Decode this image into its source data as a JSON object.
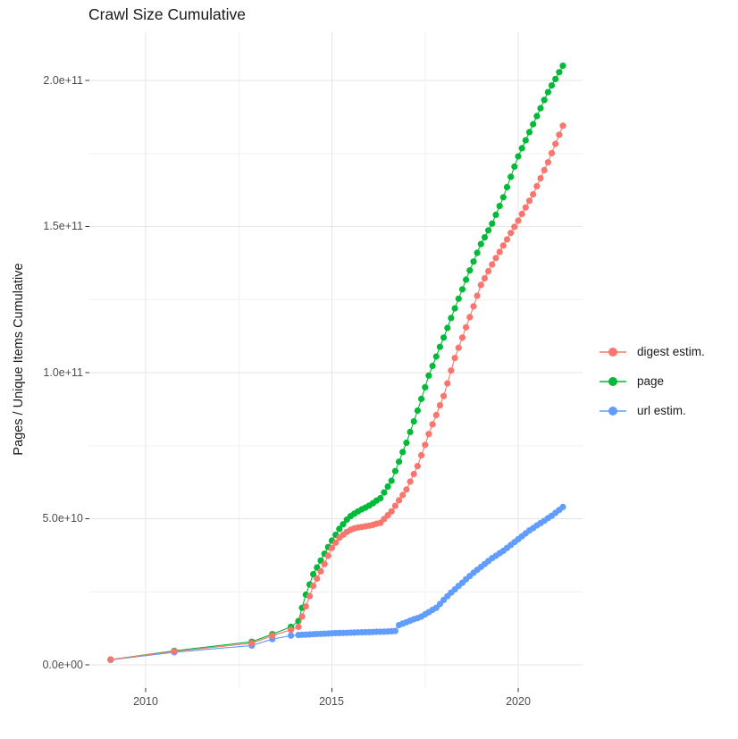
{
  "title": "Crawl Size Cumulative",
  "y_axis": {
    "label": "Pages / Unique Items Cumulative",
    "ticks": [
      "0.0e+00",
      "5.0e+10",
      "1.0e+11",
      "1.5e+11",
      "2.0e+11"
    ]
  },
  "x_axis": {
    "ticks": [
      "2010",
      "2015",
      "2020"
    ]
  },
  "legend": {
    "items": [
      {
        "label": "digest estim.",
        "color": "#F8766D"
      },
      {
        "label": "page",
        "color": "#00BA38"
      },
      {
        "label": "url estim.",
        "color": "#619CFF"
      }
    ]
  },
  "chart_data": {
    "type": "scatter",
    "title": "Crawl Size Cumulative",
    "xlabel": "",
    "ylabel": "Pages / Unique Items Cumulative",
    "values_unit": "billions (value x 1e9 pages/items)",
    "x_unit": "year (crawl date)",
    "xlim": [
      2008.5,
      2021.7
    ],
    "ylim_billions": [
      -8,
      217
    ],
    "x_ticks_years": [
      2010,
      2015,
      2020
    ],
    "x_minor_years": [
      2012.5,
      2017.5
    ],
    "y_ticks_billions": [
      0,
      50,
      100,
      150,
      200
    ],
    "y_minor_billions": [
      25,
      75,
      125,
      175
    ],
    "grid": true,
    "legend_position": "right",
    "series": [
      {
        "name": "digest estim.",
        "color": "#F8766D",
        "points": [
          [
            2009.06,
            1.8
          ],
          [
            2010.77,
            4.6
          ],
          [
            2012.85,
            7.4
          ],
          [
            2013.4,
            10.0
          ],
          [
            2013.9,
            12.0
          ],
          [
            2014.1,
            13
          ],
          [
            2014.2,
            16.5
          ],
          [
            2014.3,
            20
          ],
          [
            2014.4,
            23.5
          ],
          [
            2014.5,
            27
          ],
          [
            2014.6,
            29.5
          ],
          [
            2014.7,
            32
          ],
          [
            2014.8,
            34.5
          ],
          [
            2014.9,
            37.3
          ],
          [
            2015.0,
            40
          ],
          [
            2015.1,
            41.8
          ],
          [
            2015.2,
            43.5
          ],
          [
            2015.3,
            44.5
          ],
          [
            2015.4,
            45.5
          ],
          [
            2015.5,
            46.2
          ],
          [
            2015.6,
            46.7
          ],
          [
            2015.7,
            47
          ],
          [
            2015.8,
            47.2
          ],
          [
            2015.9,
            47.4
          ],
          [
            2016.0,
            47.6
          ],
          [
            2016.1,
            47.9
          ],
          [
            2016.2,
            48.3
          ],
          [
            2016.3,
            48.6
          ],
          [
            2016.4,
            49.9
          ],
          [
            2016.5,
            51.2
          ],
          [
            2016.6,
            52.5
          ],
          [
            2016.7,
            54.4
          ],
          [
            2016.8,
            56.3
          ],
          [
            2016.9,
            58.1
          ],
          [
            2017.0,
            60
          ],
          [
            2017.1,
            62.7
          ],
          [
            2017.2,
            65.3
          ],
          [
            2017.3,
            68
          ],
          [
            2017.4,
            71.7
          ],
          [
            2017.5,
            75.3
          ],
          [
            2017.6,
            79
          ],
          [
            2017.7,
            82.3
          ],
          [
            2017.8,
            85.5
          ],
          [
            2017.9,
            88.8
          ],
          [
            2018.0,
            92
          ],
          [
            2018.1,
            96.3
          ],
          [
            2018.2,
            100.7
          ],
          [
            2018.3,
            105
          ],
          [
            2018.4,
            108.5
          ],
          [
            2018.5,
            112
          ],
          [
            2018.6,
            115.5
          ],
          [
            2018.7,
            119
          ],
          [
            2018.8,
            122.7
          ],
          [
            2018.9,
            126.3
          ],
          [
            2019.0,
            130
          ],
          [
            2019.1,
            132.3
          ],
          [
            2019.2,
            134.7
          ],
          [
            2019.3,
            137
          ],
          [
            2019.4,
            139.2
          ],
          [
            2019.5,
            141.3
          ],
          [
            2019.6,
            143.5
          ],
          [
            2019.7,
            145.6
          ],
          [
            2019.8,
            147.8
          ],
          [
            2019.9,
            149.9
          ],
          [
            2020.0,
            152
          ],
          [
            2020.1,
            154.3
          ],
          [
            2020.2,
            156.5
          ],
          [
            2020.3,
            158.8
          ],
          [
            2020.4,
            161
          ],
          [
            2020.5,
            163.8
          ],
          [
            2020.6,
            166.5
          ],
          [
            2020.7,
            169.3
          ],
          [
            2020.8,
            172
          ],
          [
            2020.9,
            175.1
          ],
          [
            2021.0,
            178.3
          ],
          [
            2021.1,
            181.4
          ],
          [
            2021.2,
            184.5
          ]
        ]
      },
      {
        "name": "page",
        "color": "#00BA38",
        "points": [
          [
            2009.06,
            1.8
          ],
          [
            2010.77,
            4.8
          ],
          [
            2012.85,
            7.9
          ],
          [
            2013.4,
            10.5
          ],
          [
            2013.9,
            13.0
          ],
          [
            2014.1,
            15
          ],
          [
            2014.2,
            19.5
          ],
          [
            2014.3,
            24
          ],
          [
            2014.4,
            27.5
          ],
          [
            2014.5,
            31
          ],
          [
            2014.6,
            33.3
          ],
          [
            2014.7,
            35.7
          ],
          [
            2014.8,
            38
          ],
          [
            2014.9,
            40.3
          ],
          [
            2015.0,
            42.5
          ],
          [
            2015.1,
            44.5
          ],
          [
            2015.2,
            46.5
          ],
          [
            2015.3,
            48.1
          ],
          [
            2015.4,
            49.7
          ],
          [
            2015.5,
            50.9
          ],
          [
            2015.6,
            51.7
          ],
          [
            2015.7,
            52.5
          ],
          [
            2015.8,
            53.2
          ],
          [
            2015.9,
            53.8
          ],
          [
            2016.0,
            54.5
          ],
          [
            2016.1,
            55.3
          ],
          [
            2016.2,
            56.2
          ],
          [
            2016.3,
            57
          ],
          [
            2016.4,
            59
          ],
          [
            2016.5,
            61
          ],
          [
            2016.6,
            63
          ],
          [
            2016.7,
            66.3
          ],
          [
            2016.8,
            69.5
          ],
          [
            2016.9,
            72.8
          ],
          [
            2017.0,
            76
          ],
          [
            2017.1,
            79.7
          ],
          [
            2017.2,
            83.3
          ],
          [
            2017.3,
            87
          ],
          [
            2017.4,
            91
          ],
          [
            2017.5,
            95
          ],
          [
            2017.6,
            99
          ],
          [
            2017.7,
            102.3
          ],
          [
            2017.8,
            105.5
          ],
          [
            2017.9,
            108.8
          ],
          [
            2018.0,
            112
          ],
          [
            2018.1,
            115.3
          ],
          [
            2018.2,
            118.7
          ],
          [
            2018.3,
            122
          ],
          [
            2018.4,
            125.3
          ],
          [
            2018.5,
            128.5
          ],
          [
            2018.6,
            131.8
          ],
          [
            2018.7,
            135
          ],
          [
            2018.8,
            138
          ],
          [
            2018.9,
            141
          ],
          [
            2019.0,
            144
          ],
          [
            2019.1,
            146.3
          ],
          [
            2019.2,
            148.7
          ],
          [
            2019.3,
            151
          ],
          [
            2019.4,
            154
          ],
          [
            2019.5,
            157
          ],
          [
            2019.6,
            160
          ],
          [
            2019.7,
            163.5
          ],
          [
            2019.8,
            167
          ],
          [
            2019.9,
            170.5
          ],
          [
            2020.0,
            174
          ],
          [
            2020.1,
            176.8
          ],
          [
            2020.2,
            179.5
          ],
          [
            2020.3,
            182.3
          ],
          [
            2020.4,
            185
          ],
          [
            2020.5,
            187.8
          ],
          [
            2020.6,
            190.5
          ],
          [
            2020.7,
            193.3
          ],
          [
            2020.8,
            196
          ],
          [
            2020.9,
            198.3
          ],
          [
            2021.0,
            200.5
          ],
          [
            2021.1,
            202.8
          ],
          [
            2021.2,
            205
          ]
        ]
      },
      {
        "name": "url estim.",
        "color": "#619CFF",
        "points": [
          [
            2009.06,
            1.7
          ],
          [
            2010.77,
            4.3
          ],
          [
            2012.85,
            6.6
          ],
          [
            2013.4,
            8.8
          ],
          [
            2013.9,
            10.0
          ],
          [
            2014.1,
            10.2
          ],
          [
            2014.2,
            10.3
          ],
          [
            2014.3,
            10.35
          ],
          [
            2014.4,
            10.4
          ],
          [
            2014.5,
            10.5
          ],
          [
            2014.6,
            10.55
          ],
          [
            2014.7,
            10.6
          ],
          [
            2014.8,
            10.65
          ],
          [
            2014.9,
            10.7
          ],
          [
            2015.0,
            10.8
          ],
          [
            2015.1,
            10.85
          ],
          [
            2015.2,
            10.9
          ],
          [
            2015.3,
            10.92
          ],
          [
            2015.4,
            10.96
          ],
          [
            2015.5,
            11
          ],
          [
            2015.6,
            11.05
          ],
          [
            2015.7,
            11.1
          ],
          [
            2015.8,
            11.12
          ],
          [
            2015.9,
            11.16
          ],
          [
            2016.0,
            11.2
          ],
          [
            2016.1,
            11.25
          ],
          [
            2016.2,
            11.3
          ],
          [
            2016.3,
            11.32
          ],
          [
            2016.4,
            11.36
          ],
          [
            2016.5,
            11.4
          ],
          [
            2016.6,
            11.5
          ],
          [
            2016.7,
            11.6
          ],
          [
            2016.8,
            13.6
          ],
          [
            2016.9,
            14.1
          ],
          [
            2017.0,
            14.6
          ],
          [
            2017.1,
            15.1
          ],
          [
            2017.2,
            15.6
          ],
          [
            2017.3,
            16
          ],
          [
            2017.4,
            16.5
          ],
          [
            2017.5,
            17.3
          ],
          [
            2017.6,
            18
          ],
          [
            2017.7,
            18.8
          ],
          [
            2017.8,
            19.5
          ],
          [
            2017.9,
            20.8
          ],
          [
            2018.0,
            22.2
          ],
          [
            2018.1,
            23.5
          ],
          [
            2018.2,
            24.7
          ],
          [
            2018.3,
            25.8
          ],
          [
            2018.4,
            27
          ],
          [
            2018.5,
            28.1
          ],
          [
            2018.6,
            29.3
          ],
          [
            2018.7,
            30.4
          ],
          [
            2018.8,
            31.5
          ],
          [
            2018.9,
            32.5
          ],
          [
            2019.0,
            33.5
          ],
          [
            2019.1,
            34.5
          ],
          [
            2019.2,
            35.5
          ],
          [
            2019.3,
            36.5
          ],
          [
            2019.4,
            37.3
          ],
          [
            2019.5,
            38.2
          ],
          [
            2019.6,
            39
          ],
          [
            2019.7,
            40
          ],
          [
            2019.8,
            41
          ],
          [
            2019.9,
            42
          ],
          [
            2020.0,
            43
          ],
          [
            2020.1,
            44
          ],
          [
            2020.2,
            45
          ],
          [
            2020.3,
            46
          ],
          [
            2020.4,
            46.8
          ],
          [
            2020.5,
            47.7
          ],
          [
            2020.6,
            48.5
          ],
          [
            2020.7,
            49.3
          ],
          [
            2020.8,
            50.2
          ],
          [
            2020.9,
            51
          ],
          [
            2021.0,
            52
          ],
          [
            2021.1,
            53
          ],
          [
            2021.2,
            54
          ]
        ]
      }
    ]
  }
}
